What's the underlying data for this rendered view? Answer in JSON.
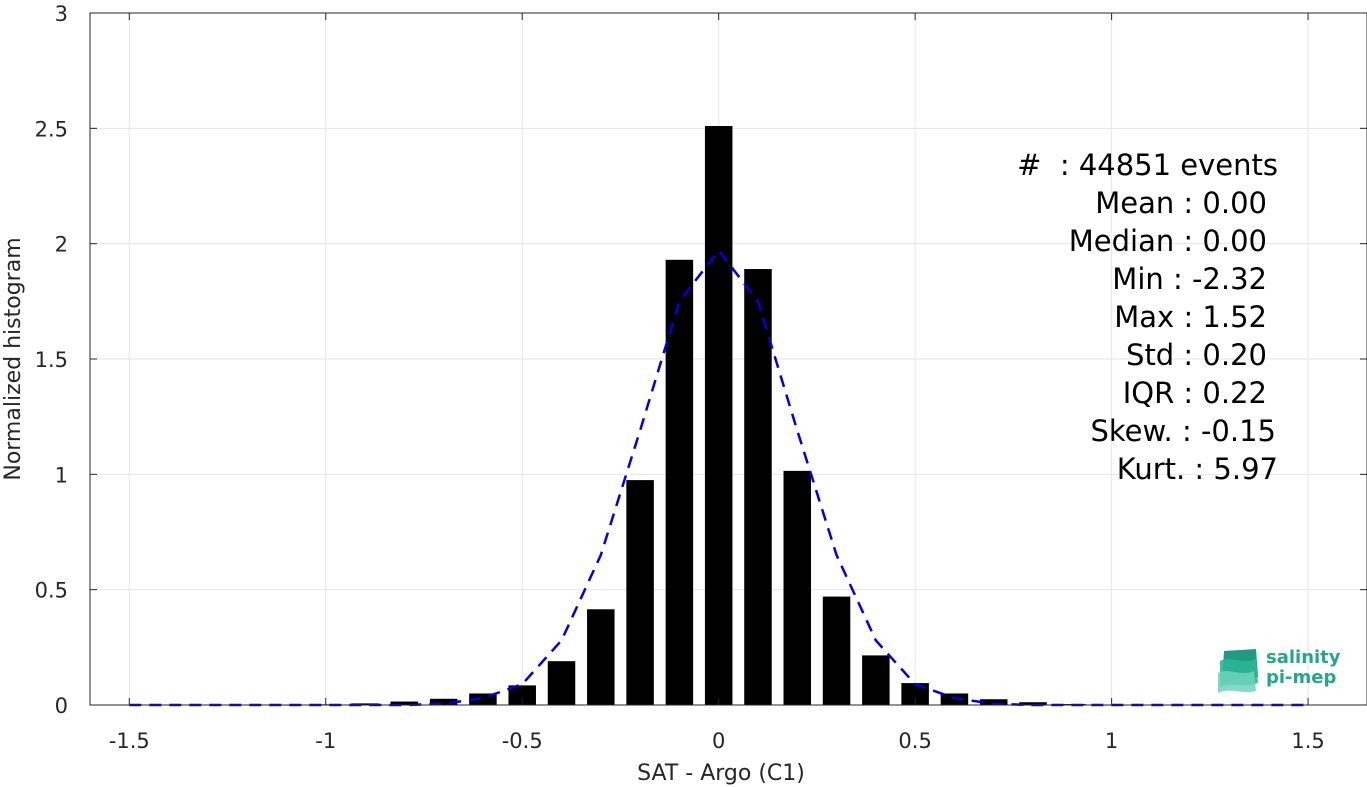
{
  "chart_data": {
    "type": "bar",
    "xlabel": "SAT - Argo (C1)",
    "ylabel": "Normalized histogram",
    "xlim": [
      -1.6,
      1.65
    ],
    "ylim": [
      0,
      3
    ],
    "grid": true,
    "x_ticks": [
      "-1.5",
      "-1",
      "-0.5",
      "0",
      "0.5",
      "1",
      "1.5"
    ],
    "x_tick_values": [
      -1.5,
      -1,
      -0.5,
      0,
      0.5,
      1,
      1.5
    ],
    "y_ticks": [
      "0",
      "0.5",
      "1",
      "1.5",
      "2",
      "2.5",
      "3"
    ],
    "y_tick_values": [
      0,
      0.5,
      1,
      1.5,
      2,
      2.5,
      3
    ],
    "bar_width": 0.07,
    "x": [
      -1.5,
      -1.4,
      -1.3,
      -1.2,
      -1.1,
      -1.0,
      -0.9,
      -0.8,
      -0.7,
      -0.6,
      -0.5,
      -0.4,
      -0.3,
      -0.2,
      -0.1,
      0.0,
      0.1,
      0.2,
      0.3,
      0.4,
      0.5,
      0.6,
      0.7,
      0.8,
      0.9,
      1.0,
      1.1,
      1.2,
      1.3,
      1.4,
      1.5
    ],
    "values": [
      0.0,
      0.0,
      0.0,
      0.0,
      0.001,
      0.003,
      0.007,
      0.015,
      0.027,
      0.05,
      0.085,
      0.19,
      0.415,
      0.975,
      1.93,
      2.51,
      1.89,
      1.015,
      0.47,
      0.215,
      0.095,
      0.05,
      0.025,
      0.012,
      0.004,
      0.001,
      0.0,
      0.0,
      0.0,
      0.0,
      0.0
    ],
    "fit_curve": {
      "style": "dashed",
      "color": "#0000e0",
      "x": [
        -1.5,
        -1.4,
        -1.3,
        -1.2,
        -1.1,
        -1.0,
        -0.9,
        -0.8,
        -0.7,
        -0.6,
        -0.5,
        -0.4,
        -0.3,
        -0.2,
        -0.1,
        0.0,
        0.1,
        0.2,
        0.3,
        0.4,
        0.5,
        0.6,
        0.7,
        0.8,
        0.9,
        1.0,
        1.1,
        1.2,
        1.3,
        1.4,
        1.5
      ],
      "y": [
        0.0,
        0.0,
        0.0,
        0.0,
        0.0,
        0.0,
        0.0,
        0.0,
        0.005,
        0.03,
        0.09,
        0.28,
        0.65,
        1.19,
        1.75,
        1.97,
        1.75,
        1.19,
        0.65,
        0.28,
        0.09,
        0.03,
        0.005,
        0.0,
        0.0,
        0.0,
        0.0,
        0.0,
        0.0,
        0.0,
        0.0
      ]
    },
    "bar_color": "#000000"
  },
  "stats": {
    "events": "#  : 44851 events",
    "mean": "Mean : 0.00",
    "median": "Median : 0.00",
    "min": "Min : -2.32",
    "max": "Max : 1.52",
    "std": "Std : 0.20",
    "iqr": "IQR : 0.22",
    "skew": "Skew. : -0.15",
    "kurt": "Kurt. : 5.97"
  },
  "logo": {
    "line1": "salinity",
    "line2": "pi-mep",
    "color": "#22a889"
  }
}
